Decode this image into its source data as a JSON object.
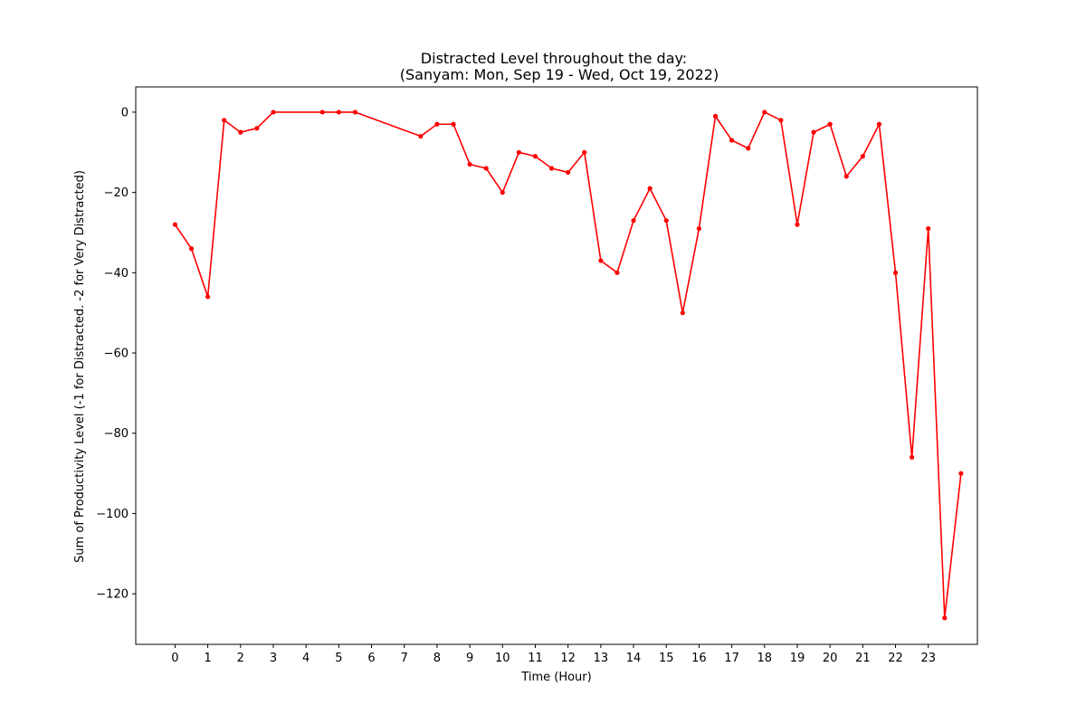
{
  "chart_data": {
    "type": "line",
    "title_line1": "Distracted Level throughout the day:",
    "title_line2": "(Sanyam: Mon, Sep 19 - Wed, Oct 19, 2022)",
    "xlabel": "Time (Hour)",
    "ylabel": "Sum of Productivity Level (-1 for Distracted. -2 for Very Distracted)",
    "xlim": [
      -1.2,
      24.5
    ],
    "ylim": [
      -132.6,
      6.3
    ],
    "xticks": [
      0,
      1,
      2,
      3,
      4,
      5,
      6,
      7,
      8,
      9,
      10,
      11,
      12,
      13,
      14,
      15,
      16,
      17,
      18,
      19,
      20,
      21,
      22,
      23
    ],
    "yticks": [
      0,
      -20,
      -40,
      -60,
      -80,
      -100,
      -120
    ],
    "ytick_labels": [
      "0",
      "−20",
      "−40",
      "−60",
      "−80",
      "−100",
      "−120"
    ],
    "grid": false,
    "legend": "none",
    "series": [
      {
        "color": "#ff0000",
        "x": [
          0,
          0.5,
          1,
          1.5,
          2,
          2.5,
          3,
          4.5,
          5,
          5.5,
          7.5,
          8,
          8.5,
          9,
          9.5,
          10,
          10.5,
          11,
          11.5,
          12,
          12.5,
          13,
          13.5,
          14,
          14.5,
          15,
          15.5,
          16,
          16.5,
          17,
          17.5,
          18,
          18.5,
          19,
          19.5,
          20,
          20.5,
          21,
          21.5,
          22,
          22.5,
          23,
          23.5,
          24
        ],
        "y": [
          -28,
          -34,
          -46,
          -2,
          -5,
          -4,
          0,
          0,
          0,
          0,
          -6,
          -3,
          -3,
          -13,
          -14,
          -20,
          -10,
          -11,
          -14,
          -15,
          -10,
          -37,
          -40,
          -27,
          -19,
          -27,
          -50,
          -29,
          -1,
          -7,
          -9,
          0,
          -2,
          -28,
          -5,
          -3,
          -16,
          -11,
          -3,
          -40,
          -86,
          -29,
          -126,
          -90
        ]
      }
    ]
  }
}
